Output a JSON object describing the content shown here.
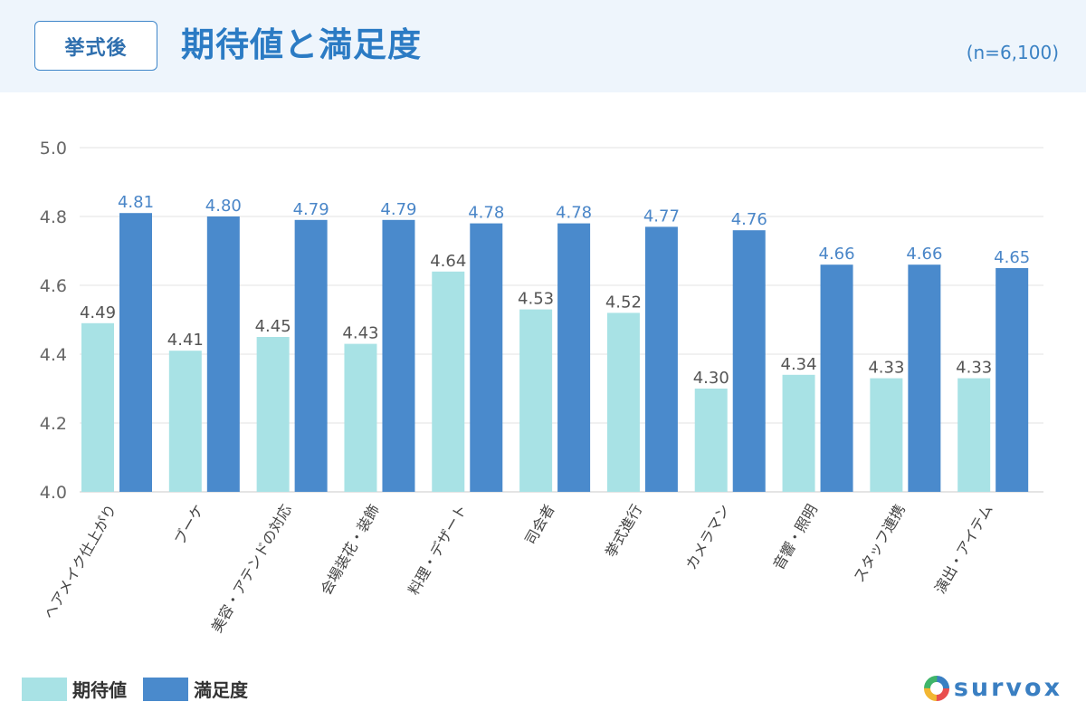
{
  "header": {
    "tag": "挙式後",
    "title": "期待値と満足度",
    "sample_size": "(n=6,100)"
  },
  "colors": {
    "expectation": "#a8e2e5",
    "satisfaction": "#4a8acc",
    "satisfaction_label": "#4a86c8",
    "header_bg": "#eef5fc"
  },
  "chart_data": {
    "type": "bar",
    "categories": [
      "ヘアメイク仕上がり",
      "ブーケ",
      "美容・アテンドの対応",
      "会場装花・装飾",
      "料理・デザート",
      "司会者",
      "挙式進行",
      "カメラマン",
      "音響・照明",
      "スタッフ連携",
      "演出・アイテム"
    ],
    "series": [
      {
        "name": "期待値",
        "values": [
          4.49,
          4.41,
          4.45,
          4.43,
          4.64,
          4.53,
          4.52,
          4.3,
          4.34,
          4.33,
          4.33
        ]
      },
      {
        "name": "満足度",
        "values": [
          4.81,
          4.8,
          4.79,
          4.79,
          4.78,
          4.78,
          4.77,
          4.76,
          4.66,
          4.66,
          4.65
        ]
      }
    ],
    "ylim": [
      4.0,
      5.0
    ],
    "yticks": [
      "4.0",
      "4.2",
      "4.4",
      "4.6",
      "4.8",
      "5.0"
    ],
    "grid": true,
    "legend": "bottom-left"
  },
  "legend": {
    "items": [
      {
        "label": "期待値",
        "color": "#a8e2e5"
      },
      {
        "label": "満足度",
        "color": "#4a8acc"
      }
    ]
  },
  "logo": {
    "text": "survox"
  }
}
